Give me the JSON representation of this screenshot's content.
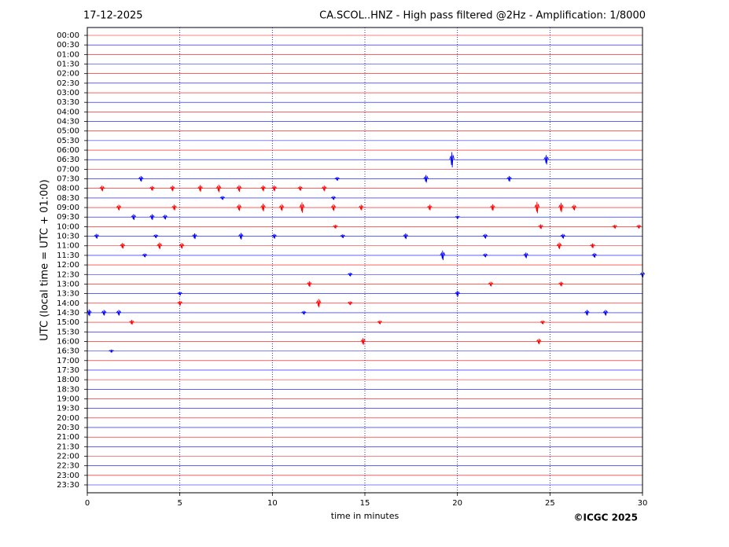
{
  "chart_data": {
    "type": "helicorder",
    "date": "17-12-2025",
    "title": "CA.SCOL..HNZ - High pass filtered @2Hz - Amplification: 1/8000",
    "ylabel": "UTC (local time = UTC + 01:00)",
    "xlabel": "time in minutes",
    "credit": "©ICGC 2025",
    "xlim": [
      0,
      30
    ],
    "xticks": [
      0,
      5,
      10,
      15,
      20,
      25,
      30
    ],
    "grid": true,
    "colors": [
      "#ff0000",
      "#0000ff"
    ],
    "categories": [
      "00:00",
      "00:30",
      "01:00",
      "01:30",
      "02:00",
      "02:30",
      "03:00",
      "03:30",
      "04:00",
      "04:30",
      "05:00",
      "05:30",
      "06:00",
      "06:30",
      "07:00",
      "07:30",
      "08:00",
      "08:30",
      "09:00",
      "09:30",
      "10:00",
      "10:30",
      "11:00",
      "11:30",
      "12:00",
      "12:30",
      "13:00",
      "13:30",
      "14:00",
      "14:30",
      "15:00",
      "15:30",
      "16:00",
      "16:30",
      "17:00",
      "17:30",
      "18:00",
      "18:30",
      "19:00",
      "19:30",
      "20:00",
      "20:30",
      "21:00",
      "21:30",
      "22:00",
      "22:30",
      "23:00",
      "23:30"
    ],
    "events": [
      [],
      [],
      [],
      [],
      [],
      [],
      [],
      [],
      [],
      [],
      [],
      [],
      [],
      [
        {
          "x": 19.7,
          "amplitude": 0.8
        },
        {
          "x": 24.8,
          "amplitude": 0.5
        }
      ],
      [],
      [
        {
          "x": 2.9,
          "amplitude": 0.3
        },
        {
          "x": 13.5,
          "amplitude": 0.2
        },
        {
          "x": 18.3,
          "amplitude": 0.4
        },
        {
          "x": 22.8,
          "amplitude": 0.3
        }
      ],
      [
        {
          "x": 0.8,
          "amplitude": 0.3
        },
        {
          "x": 3.5,
          "amplitude": 0.25
        },
        {
          "x": 4.6,
          "amplitude": 0.3
        },
        {
          "x": 6.1,
          "amplitude": 0.35
        },
        {
          "x": 7.1,
          "amplitude": 0.4
        },
        {
          "x": 8.2,
          "amplitude": 0.35
        },
        {
          "x": 9.5,
          "amplitude": 0.3
        },
        {
          "x": 10.1,
          "amplitude": 0.3
        },
        {
          "x": 11.5,
          "amplitude": 0.25
        },
        {
          "x": 12.8,
          "amplitude": 0.3
        }
      ],
      [
        {
          "x": 7.3,
          "amplitude": 0.2
        },
        {
          "x": 13.3,
          "amplitude": 0.2
        }
      ],
      [
        {
          "x": 1.7,
          "amplitude": 0.3
        },
        {
          "x": 4.7,
          "amplitude": 0.3
        },
        {
          "x": 8.2,
          "amplitude": 0.35
        },
        {
          "x": 9.5,
          "amplitude": 0.4
        },
        {
          "x": 10.5,
          "amplitude": 0.35
        },
        {
          "x": 11.6,
          "amplitude": 0.55
        },
        {
          "x": 13.3,
          "amplitude": 0.35
        },
        {
          "x": 14.8,
          "amplitude": 0.3
        },
        {
          "x": 18.5,
          "amplitude": 0.3
        },
        {
          "x": 21.9,
          "amplitude": 0.35
        },
        {
          "x": 24.3,
          "amplitude": 0.6
        },
        {
          "x": 25.6,
          "amplitude": 0.5
        },
        {
          "x": 26.3,
          "amplitude": 0.3
        }
      ],
      [
        {
          "x": 2.5,
          "amplitude": 0.3
        },
        {
          "x": 3.5,
          "amplitude": 0.3
        },
        {
          "x": 4.2,
          "amplitude": 0.25
        },
        {
          "x": 20,
          "amplitude": 0.15
        }
      ],
      [
        {
          "x": 13.4,
          "amplitude": 0.2
        },
        {
          "x": 24.5,
          "amplitude": 0.25
        },
        {
          "x": 28.5,
          "amplitude": 0.2
        },
        {
          "x": 29.8,
          "amplitude": 0.2
        }
      ],
      [
        {
          "x": 0.5,
          "amplitude": 0.25
        },
        {
          "x": 3.7,
          "amplitude": 0.2
        },
        {
          "x": 5.8,
          "amplitude": 0.3
        },
        {
          "x": 8.3,
          "amplitude": 0.35
        },
        {
          "x": 10.1,
          "amplitude": 0.25
        },
        {
          "x": 13.8,
          "amplitude": 0.2
        },
        {
          "x": 17.2,
          "amplitude": 0.3
        },
        {
          "x": 21.5,
          "amplitude": 0.25
        },
        {
          "x": 25.7,
          "amplitude": 0.25
        }
      ],
      [
        {
          "x": 1.9,
          "amplitude": 0.3
        },
        {
          "x": 3.9,
          "amplitude": 0.35
        },
        {
          "x": 5.1,
          "amplitude": 0.3
        },
        {
          "x": 25.5,
          "amplitude": 0.35
        },
        {
          "x": 27.3,
          "amplitude": 0.25
        }
      ],
      [
        {
          "x": 3.1,
          "amplitude": 0.2
        },
        {
          "x": 19.2,
          "amplitude": 0.5
        },
        {
          "x": 21.5,
          "amplitude": 0.2
        },
        {
          "x": 23.7,
          "amplitude": 0.3
        },
        {
          "x": 27.4,
          "amplitude": 0.25
        }
      ],
      [],
      [
        {
          "x": 14.2,
          "amplitude": 0.2
        },
        {
          "x": 30,
          "amplitude": 0.3
        }
      ],
      [
        {
          "x": 12,
          "amplitude": 0.3
        },
        {
          "x": 21.8,
          "amplitude": 0.25
        },
        {
          "x": 25.6,
          "amplitude": 0.25
        }
      ],
      [
        {
          "x": 5,
          "amplitude": 0.2
        },
        {
          "x": 20,
          "amplitude": 0.3
        }
      ],
      [
        {
          "x": 5,
          "amplitude": 0.25
        },
        {
          "x": 12.5,
          "amplitude": 0.45
        },
        {
          "x": 14.2,
          "amplitude": 0.2
        }
      ],
      [
        {
          "x": 0.1,
          "amplitude": 0.35
        },
        {
          "x": 0.9,
          "amplitude": 0.3
        },
        {
          "x": 1.7,
          "amplitude": 0.3
        },
        {
          "x": 11.7,
          "amplitude": 0.2
        },
        {
          "x": 27,
          "amplitude": 0.3
        },
        {
          "x": 28,
          "amplitude": 0.3
        }
      ],
      [
        {
          "x": 2.4,
          "amplitude": 0.25
        },
        {
          "x": 15.8,
          "amplitude": 0.2
        },
        {
          "x": 24.6,
          "amplitude": 0.2
        }
      ],
      [],
      [
        {
          "x": 14.9,
          "amplitude": 0.35
        },
        {
          "x": 24.4,
          "amplitude": 0.3
        }
      ],
      [
        {
          "x": 1.3,
          "amplitude": 0.15
        }
      ],
      [],
      [],
      [],
      [],
      [],
      [],
      [],
      [],
      [],
      [],
      [],
      [],
      [],
      []
    ]
  }
}
